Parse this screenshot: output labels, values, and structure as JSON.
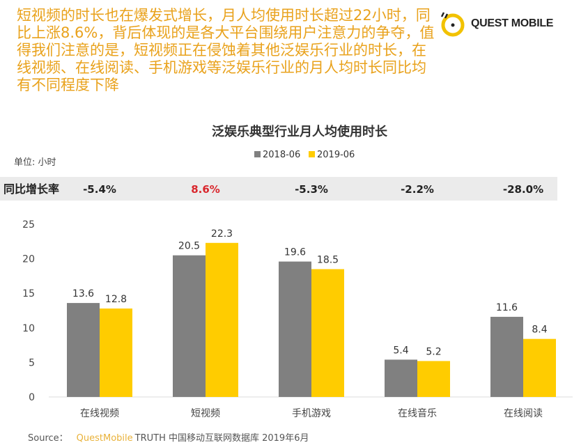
{
  "intro_text": "短视频的时长也在爆发式增长，月人均使用时长超过22小时，同比上涨8.6%，背后体现的是各大平台围绕用户注意力的争夺，值得我们注意的是，短视频正在侵蚀着其他泛娱乐行业的时长，在线视频、在线阅读、手机游戏等泛娱乐行业的月人均时长同比均有不同程度下降",
  "logo": {
    "text": "QUEST MOBILE"
  },
  "growth_row": {
    "label": "同比增长率",
    "values": [
      "-5.4%",
      "8.6%",
      "-5.3%",
      "-2.2%",
      "-28.0%"
    ],
    "highlight_color": "#d9262c"
  },
  "source": {
    "prefix": "Source：",
    "brand": "QuestMobile",
    "rest": "TRUTH 中国移动互联网数据库 2019年6月"
  },
  "chart_data": {
    "type": "bar",
    "title": "泛娱乐典型行业月人均使用时长",
    "unit_label": "单位: 小时",
    "categories": [
      "在线视频",
      "短视频",
      "手机游戏",
      "在线音乐",
      "在线阅读"
    ],
    "series": [
      {
        "name": "2018-06",
        "values": [
          13.6,
          20.5,
          19.6,
          5.4,
          11.6
        ],
        "color": "#808080"
      },
      {
        "name": "2019-06",
        "values": [
          12.8,
          22.3,
          18.5,
          5.2,
          8.4
        ],
        "color": "#ffcc00"
      }
    ],
    "ylim": [
      0,
      25
    ],
    "yticks": [
      0,
      5,
      10,
      15,
      20,
      25
    ],
    "grid": false,
    "legend_placement": "top-center"
  }
}
